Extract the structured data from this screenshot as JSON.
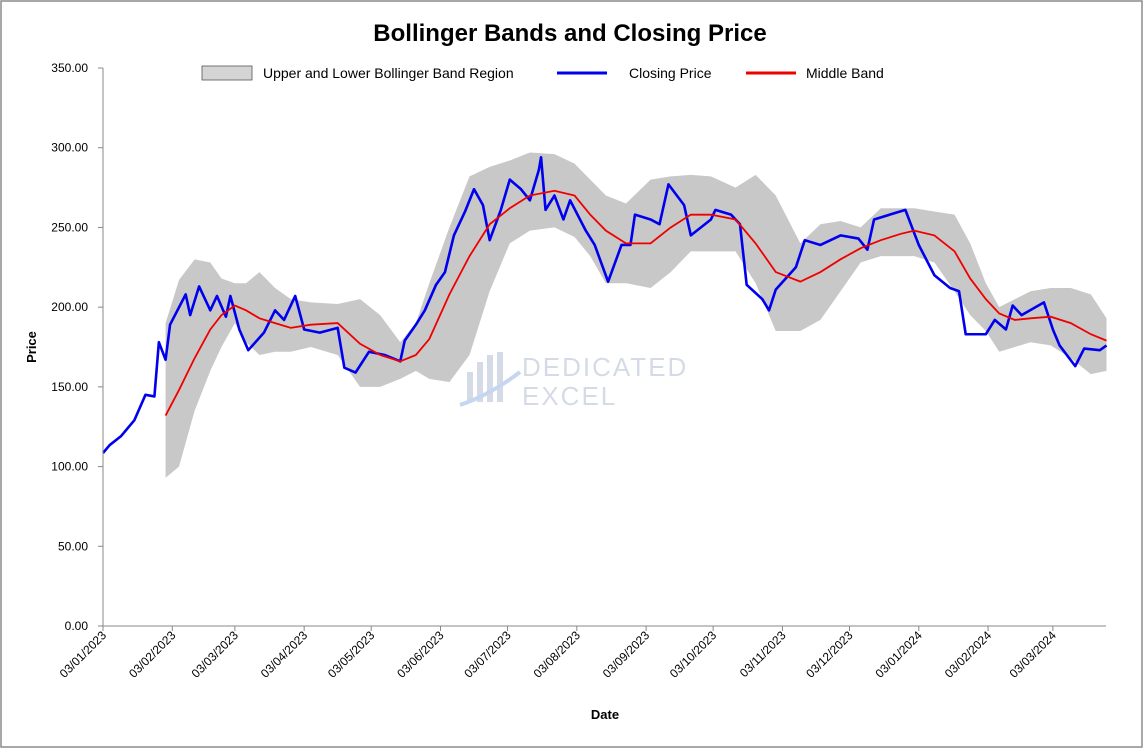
{
  "chart_data": {
    "type": "line",
    "title": "Bollinger Bands and Closing Price",
    "xlabel": "Date",
    "ylabel": "Price",
    "ylim": [
      0,
      350
    ],
    "yticks": [
      "0.00",
      "50.00",
      "100.00",
      "150.00",
      "200.00",
      "250.00",
      "300.00",
      "350.00"
    ],
    "xticks": [
      {
        "date": "2023-01-03",
        "label": "03/01/2023"
      },
      {
        "date": "2023-02-03",
        "label": "03/02/2023"
      },
      {
        "date": "2023-03-03",
        "label": "03/03/2023"
      },
      {
        "date": "2023-04-03",
        "label": "03/04/2023"
      },
      {
        "date": "2023-05-03",
        "label": "03/05/2023"
      },
      {
        "date": "2023-06-03",
        "label": "03/06/2023"
      },
      {
        "date": "2023-07-03",
        "label": "03/07/2023"
      },
      {
        "date": "2023-08-03",
        "label": "03/08/2023"
      },
      {
        "date": "2023-09-03",
        "label": "03/09/2023"
      },
      {
        "date": "2023-10-03",
        "label": "03/10/2023"
      },
      {
        "date": "2023-11-03",
        "label": "03/11/2023"
      },
      {
        "date": "2023-12-03",
        "label": "03/12/2023"
      },
      {
        "date": "2024-01-03",
        "label": "03/01/2024"
      },
      {
        "date": "2024-02-03",
        "label": "03/02/2024"
      },
      {
        "date": "2024-03-03",
        "label": "03/03/2024"
      }
    ],
    "xlim": [
      "2023-01-03",
      "2024-03-27"
    ],
    "grid": false,
    "legend_placement": "top",
    "colors": {
      "band": "#c8c8c8",
      "close": "#0000ee",
      "middle": "#ee0000"
    },
    "series": [
      {
        "name": "Closing Price",
        "values": [
          [
            "2023-01-03",
            108.5
          ],
          [
            "2023-01-06",
            113.5
          ],
          [
            "2023-01-11",
            119
          ],
          [
            "2023-01-17",
            129
          ],
          [
            "2023-01-22",
            145
          ],
          [
            "2023-01-26",
            144
          ],
          [
            "2023-01-28",
            178
          ],
          [
            "2023-01-31",
            167
          ],
          [
            "2023-02-02",
            189
          ],
          [
            "2023-02-09",
            208
          ],
          [
            "2023-02-11",
            195
          ],
          [
            "2023-02-15",
            213
          ],
          [
            "2023-02-20",
            198
          ],
          [
            "2023-02-23",
            207
          ],
          [
            "2023-02-27",
            194
          ],
          [
            "2023-03-01",
            207
          ],
          [
            "2023-03-05",
            186
          ],
          [
            "2023-03-09",
            173
          ],
          [
            "2023-03-16",
            184
          ],
          [
            "2023-03-21",
            198
          ],
          [
            "2023-03-25",
            192
          ],
          [
            "2023-03-30",
            207
          ],
          [
            "2023-04-03",
            186
          ],
          [
            "2023-04-10",
            184
          ],
          [
            "2023-04-18",
            187
          ],
          [
            "2023-04-21",
            162
          ],
          [
            "2023-04-26",
            159
          ],
          [
            "2023-05-02",
            172
          ],
          [
            "2023-05-09",
            170
          ],
          [
            "2023-05-16",
            166
          ],
          [
            "2023-05-18",
            179
          ],
          [
            "2023-05-23",
            189
          ],
          [
            "2023-05-27",
            198
          ],
          [
            "2023-06-01",
            214
          ],
          [
            "2023-06-05",
            222
          ],
          [
            "2023-06-09",
            245
          ],
          [
            "2023-06-14",
            260
          ],
          [
            "2023-06-18",
            274
          ],
          [
            "2023-06-22",
            264
          ],
          [
            "2023-06-25",
            242
          ],
          [
            "2023-06-30",
            261
          ],
          [
            "2023-07-04",
            280
          ],
          [
            "2023-07-09",
            274
          ],
          [
            "2023-07-13",
            267
          ],
          [
            "2023-07-17",
            286
          ],
          [
            "2023-07-18",
            294
          ],
          [
            "2023-07-20",
            261
          ],
          [
            "2023-07-24",
            270
          ],
          [
            "2023-07-28",
            255
          ],
          [
            "2023-07-31",
            267
          ],
          [
            "2023-08-07",
            248
          ],
          [
            "2023-08-11",
            239
          ],
          [
            "2023-08-17",
            216
          ],
          [
            "2023-08-23",
            239
          ],
          [
            "2023-08-27",
            239
          ],
          [
            "2023-08-29",
            258
          ],
          [
            "2023-09-05",
            255
          ],
          [
            "2023-09-09",
            252
          ],
          [
            "2023-09-13",
            277
          ],
          [
            "2023-09-20",
            264
          ],
          [
            "2023-09-23",
            245
          ],
          [
            "2023-10-02",
            255
          ],
          [
            "2023-10-04",
            261
          ],
          [
            "2023-10-11",
            258
          ],
          [
            "2023-10-15",
            252
          ],
          [
            "2023-10-18",
            214
          ],
          [
            "2023-10-25",
            205
          ],
          [
            "2023-10-28",
            198
          ],
          [
            "2023-10-31",
            211
          ],
          [
            "2023-11-09",
            225
          ],
          [
            "2023-11-13",
            242
          ],
          [
            "2023-11-20",
            239
          ],
          [
            "2023-11-29",
            245
          ],
          [
            "2023-12-07",
            243
          ],
          [
            "2023-12-11",
            236
          ],
          [
            "2023-12-14",
            255
          ],
          [
            "2023-12-21",
            258
          ],
          [
            "2023-12-28",
            261
          ],
          [
            "2023-12-31",
            250
          ],
          [
            "2024-01-03",
            239
          ],
          [
            "2024-01-10",
            220
          ],
          [
            "2024-01-17",
            212
          ],
          [
            "2024-01-21",
            210
          ],
          [
            "2024-01-24",
            183
          ],
          [
            "2024-02-02",
            183
          ],
          [
            "2024-02-06",
            192
          ],
          [
            "2024-02-11",
            186
          ],
          [
            "2024-02-14",
            201
          ],
          [
            "2024-02-18",
            195
          ],
          [
            "2024-02-28",
            203
          ],
          [
            "2024-03-03",
            186
          ],
          [
            "2024-03-06",
            176
          ],
          [
            "2024-03-13",
            163
          ],
          [
            "2024-03-17",
            174
          ],
          [
            "2024-03-24",
            173
          ],
          [
            "2024-03-27",
            176
          ]
        ]
      },
      {
        "name": "Middle Band",
        "values": [
          [
            "2023-01-31",
            132
          ],
          [
            "2023-02-06",
            148
          ],
          [
            "2023-02-13",
            168
          ],
          [
            "2023-02-20",
            186
          ],
          [
            "2023-02-25",
            195
          ],
          [
            "2023-03-03",
            201
          ],
          [
            "2023-03-08",
            198
          ],
          [
            "2023-03-14",
            193
          ],
          [
            "2023-03-21",
            190
          ],
          [
            "2023-03-28",
            187
          ],
          [
            "2023-04-06",
            189
          ],
          [
            "2023-04-18",
            190
          ],
          [
            "2023-04-28",
            177
          ],
          [
            "2023-05-07",
            170
          ],
          [
            "2023-05-16",
            166
          ],
          [
            "2023-05-23",
            170
          ],
          [
            "2023-05-29",
            180
          ],
          [
            "2023-06-07",
            208
          ],
          [
            "2023-06-16",
            232
          ],
          [
            "2023-06-25",
            252
          ],
          [
            "2023-07-04",
            262
          ],
          [
            "2023-07-13",
            270
          ],
          [
            "2023-07-24",
            273
          ],
          [
            "2023-08-02",
            270
          ],
          [
            "2023-08-09",
            258
          ],
          [
            "2023-08-16",
            248
          ],
          [
            "2023-08-25",
            240
          ],
          [
            "2023-09-05",
            240
          ],
          [
            "2023-09-14",
            250
          ],
          [
            "2023-09-23",
            258
          ],
          [
            "2023-10-02",
            258
          ],
          [
            "2023-10-13",
            255
          ],
          [
            "2023-10-22",
            240
          ],
          [
            "2023-10-31",
            222
          ],
          [
            "2023-11-11",
            216
          ],
          [
            "2023-11-20",
            222
          ],
          [
            "2023-11-29",
            230
          ],
          [
            "2023-12-08",
            237
          ],
          [
            "2023-12-17",
            242
          ],
          [
            "2023-12-26",
            246
          ],
          [
            "2024-01-01",
            248
          ],
          [
            "2024-01-10",
            245
          ],
          [
            "2024-01-19",
            235
          ],
          [
            "2024-01-26",
            218
          ],
          [
            "2024-02-02",
            205
          ],
          [
            "2024-02-08",
            196
          ],
          [
            "2024-02-15",
            192
          ],
          [
            "2024-02-22",
            193
          ],
          [
            "2024-03-02",
            194
          ],
          [
            "2024-03-11",
            190
          ],
          [
            "2024-03-20",
            183
          ],
          [
            "2024-03-27",
            179
          ]
        ]
      },
      {
        "name": "Upper and Lower Bollinger Band Region",
        "values": [
          [
            "2023-01-31",
            190,
            93
          ],
          [
            "2023-02-06",
            217,
            100
          ],
          [
            "2023-02-13",
            230,
            135
          ],
          [
            "2023-02-20",
            228,
            160
          ],
          [
            "2023-02-25",
            218,
            175
          ],
          [
            "2023-03-03",
            215,
            190
          ],
          [
            "2023-03-08",
            215,
            178
          ],
          [
            "2023-03-14",
            222,
            170
          ],
          [
            "2023-03-21",
            212,
            172
          ],
          [
            "2023-03-28",
            205,
            172
          ],
          [
            "2023-04-06",
            203,
            175
          ],
          [
            "2023-04-18",
            202,
            170
          ],
          [
            "2023-04-28",
            205,
            150
          ],
          [
            "2023-05-07",
            195,
            150
          ],
          [
            "2023-05-16",
            178,
            155
          ],
          [
            "2023-05-23",
            190,
            160
          ],
          [
            "2023-05-29",
            215,
            155
          ],
          [
            "2023-06-07",
            250,
            153
          ],
          [
            "2023-06-16",
            282,
            170
          ],
          [
            "2023-06-25",
            288,
            210
          ],
          [
            "2023-07-04",
            292,
            240
          ],
          [
            "2023-07-13",
            297,
            248
          ],
          [
            "2023-07-24",
            296,
            250
          ],
          [
            "2023-08-02",
            290,
            244
          ],
          [
            "2023-08-09",
            280,
            232
          ],
          [
            "2023-08-16",
            270,
            215
          ],
          [
            "2023-08-25",
            265,
            215
          ],
          [
            "2023-09-05",
            280,
            212
          ],
          [
            "2023-09-14",
            282,
            222
          ],
          [
            "2023-09-23",
            283,
            235
          ],
          [
            "2023-10-02",
            282,
            235
          ],
          [
            "2023-10-13",
            275,
            235
          ],
          [
            "2023-10-22",
            283,
            215
          ],
          [
            "2023-10-31",
            270,
            185
          ],
          [
            "2023-11-11",
            240,
            185
          ],
          [
            "2023-11-20",
            252,
            192
          ],
          [
            "2023-11-29",
            254,
            210
          ],
          [
            "2023-12-08",
            250,
            228
          ],
          [
            "2023-12-17",
            262,
            232
          ],
          [
            "2023-12-26",
            262,
            232
          ],
          [
            "2024-01-01",
            262,
            232
          ],
          [
            "2024-01-10",
            260,
            228
          ],
          [
            "2024-01-19",
            258,
            210
          ],
          [
            "2024-01-26",
            240,
            195
          ],
          [
            "2024-02-02",
            215,
            185
          ],
          [
            "2024-02-08",
            200,
            172
          ],
          [
            "2024-02-15",
            205,
            175
          ],
          [
            "2024-02-22",
            210,
            178
          ],
          [
            "2024-03-02",
            212,
            176
          ],
          [
            "2024-03-11",
            212,
            168
          ],
          [
            "2024-03-20",
            208,
            158
          ],
          [
            "2024-03-27",
            193,
            160
          ]
        ]
      }
    ],
    "legend": [
      {
        "label": "Upper and Lower Bollinger Band Region",
        "kind": "area"
      },
      {
        "label": "Closing Price",
        "kind": "line"
      },
      {
        "label": "Middle Band",
        "kind": "line"
      }
    ],
    "watermark": "DEDICATED EXCEL"
  }
}
